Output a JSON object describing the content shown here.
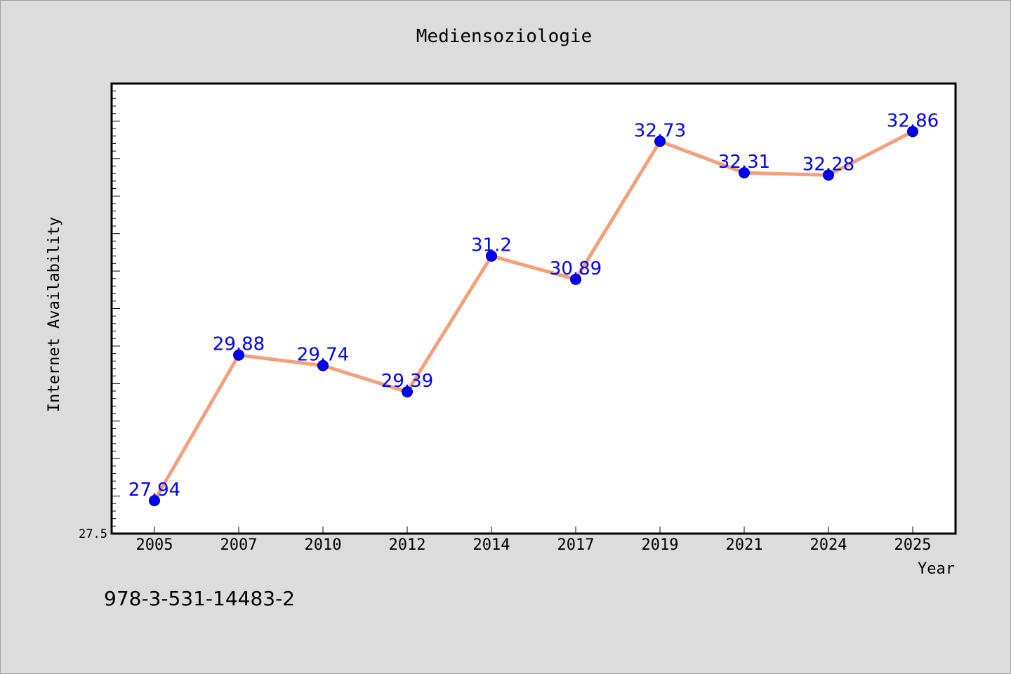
{
  "chart_data": {
    "type": "line",
    "title": "Mediensoziologie",
    "xlabel": "Year",
    "ylabel": "Internet Availability",
    "categories": [
      "2005",
      "2007",
      "2010",
      "2012",
      "2014",
      "2017",
      "2019",
      "2021",
      "2024",
      "2025"
    ],
    "series": [
      {
        "values": [
          27.94,
          29.88,
          29.74,
          29.39,
          31.2,
          30.89,
          32.73,
          32.31,
          32.28,
          32.86
        ]
      }
    ],
    "data_labels": [
      "27.94",
      "29.88",
      "29.74",
      "29.39",
      "31.2",
      "30.89",
      "32.73",
      "32.31",
      "32.28",
      "32.86"
    ],
    "ylim": [
      27.5,
      33.5
    ],
    "yticks_labeled": [
      "27.5"
    ],
    "grid": false,
    "legend": "none",
    "colors": {
      "line": "#f4a07a",
      "marker": "#0000ff",
      "marker_edge": "#000080",
      "data_label": "#0000ff",
      "plot_background": "#ffffff",
      "figure_background": "#dcdcdc"
    }
  },
  "footnote": "978-3-531-14483-2"
}
